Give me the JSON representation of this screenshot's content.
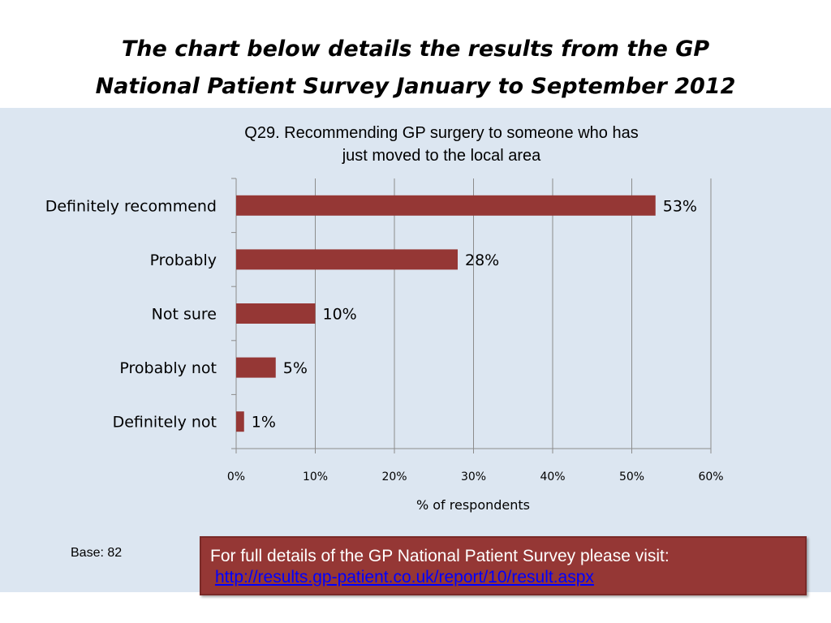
{
  "slide": {
    "title_line1": "The chart below details the results from the GP",
    "title_line2": "National Patient Survey January to September 2012"
  },
  "chart_data": {
    "type": "bar",
    "orientation": "horizontal",
    "title_line1": "Q29. Recommending GP surgery to someone who has",
    "title_line2": "just moved to the local area",
    "categories": [
      "Definitely recommend",
      "Probably",
      "Not sure",
      "Probably not",
      "Definitely not"
    ],
    "values": [
      53,
      28,
      10,
      5,
      1
    ],
    "data_labels": [
      "53%",
      "28%",
      "10%",
      "5%",
      "1%"
    ],
    "xlabel": "% of respondents",
    "xlim": [
      0,
      60
    ],
    "xticks": [
      0,
      10,
      20,
      30,
      40,
      50,
      60
    ],
    "xtick_labels": [
      "0%",
      "10%",
      "20%",
      "30%",
      "40%",
      "50%",
      "60%"
    ],
    "grid": true,
    "bar_color": "#953735"
  },
  "footer": {
    "base_note": "Base: 82",
    "info_text": "For full details of the GP National Patient Survey please visit:",
    "info_link": "http://results.gp-patient.co.uk/report/10/result.aspx"
  }
}
